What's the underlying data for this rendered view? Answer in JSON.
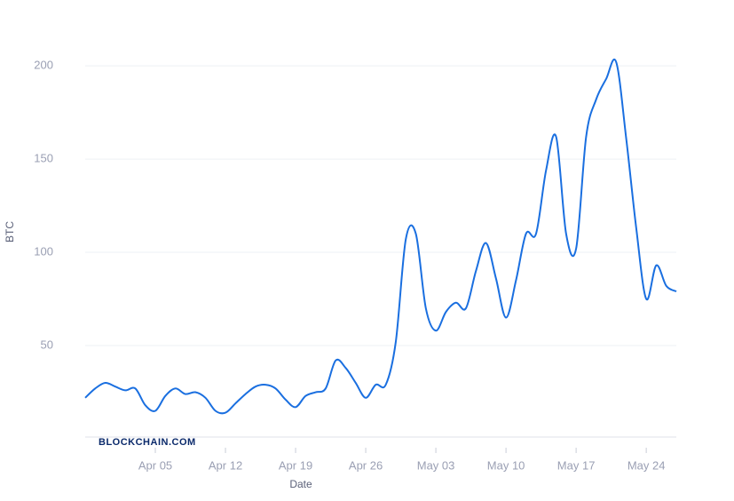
{
  "chart_data": {
    "type": "line",
    "x_label": "Date",
    "y_label": "BTC",
    "watermark": "BLOCKCHAIN.COM",
    "categories": [
      null,
      null,
      null,
      null,
      null,
      null,
      null,
      "Apr 05",
      null,
      null,
      null,
      null,
      null,
      null,
      "Apr 12",
      null,
      null,
      null,
      null,
      null,
      null,
      "Apr 19",
      null,
      null,
      null,
      null,
      null,
      null,
      "Apr 26",
      null,
      null,
      null,
      null,
      null,
      null,
      "May 03",
      null,
      null,
      null,
      null,
      null,
      null,
      "May 10",
      null,
      null,
      null,
      null,
      null,
      null,
      "May 17",
      null,
      null,
      null,
      null,
      null,
      null,
      "May 24",
      null,
      null,
      null
    ],
    "series": [
      {
        "name": "BTC",
        "color": "#1a6fe0",
        "values": [
          22,
          27,
          30,
          28,
          26,
          27,
          18,
          15,
          23,
          27,
          24,
          25,
          22,
          15,
          14,
          19,
          24,
          28,
          29,
          27,
          21,
          17,
          23,
          25,
          27,
          42,
          38,
          30,
          22,
          29,
          29,
          52,
          107,
          110,
          70,
          58,
          68,
          73,
          70,
          90,
          105,
          86,
          65,
          85,
          110,
          110,
          144,
          162,
          110,
          102,
          162,
          182,
          193,
          202,
          161,
          113,
          75,
          93,
          82,
          79
        ]
      }
    ],
    "ylim": [
      0,
      221
    ],
    "yticks": [
      50,
      100,
      150,
      200
    ],
    "grid": true
  }
}
